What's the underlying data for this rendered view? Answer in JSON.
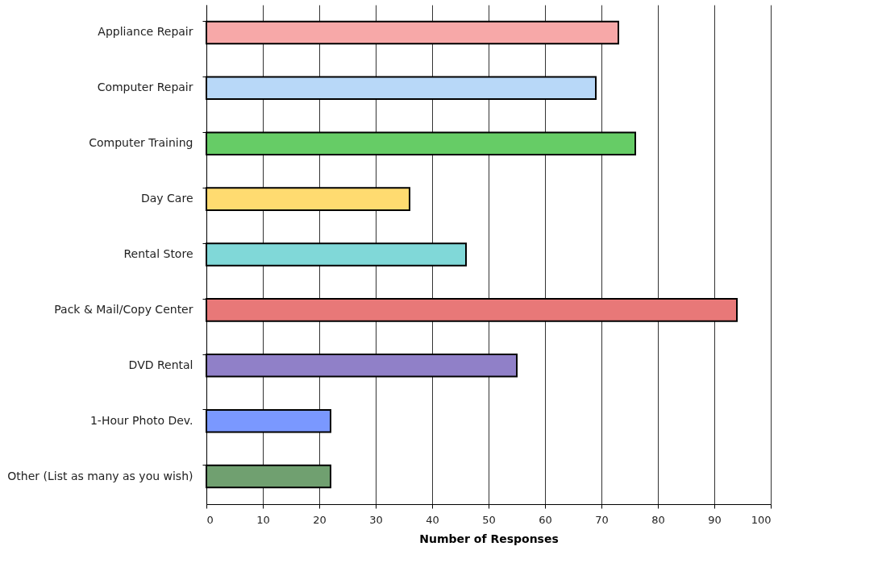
{
  "chart_data": {
    "type": "bar",
    "orientation": "horizontal",
    "xlabel": "Number of Responses",
    "categories": [
      "Appliance Repair",
      "Computer Repair",
      "Computer Training",
      "Day Care",
      "Rental Store",
      "Pack & Mail/Copy Center",
      "DVD Rental",
      "1-Hour Photo Dev.",
      "Other (List as many as you wish)"
    ],
    "values": [
      73,
      69,
      76,
      36,
      46,
      94,
      55,
      22,
      22
    ],
    "colors": [
      "#f7a8a8",
      "#b8d8f8",
      "#66cc66",
      "#ffdb70",
      "#80d8d8",
      "#e87878",
      "#9080c8",
      "#7a98ff",
      "#70a070"
    ],
    "xlim": [
      0,
      100
    ],
    "xticks": [
      0,
      10,
      20,
      30,
      40,
      50,
      60,
      70,
      80,
      90,
      100
    ],
    "grid": "x"
  }
}
